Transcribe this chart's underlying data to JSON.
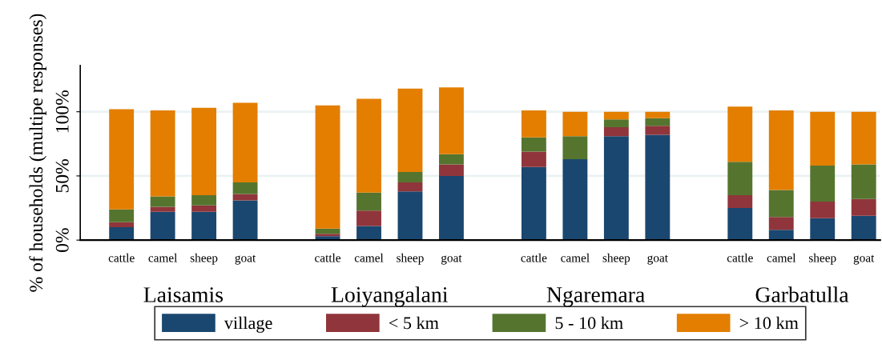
{
  "chart_data": {
    "type": "bar",
    "stacked": true,
    "ylabel": "% of households (multipe responses)",
    "categories": [
      "cattle",
      "camel",
      "sheep",
      "goat",
      null,
      "cattle",
      "camel",
      "sheep",
      "goat",
      null,
      "cattle",
      "camel",
      "sheep",
      "goat",
      null,
      "cattle",
      "camel",
      "sheep",
      "goat"
    ],
    "series": [
      {
        "name": "village",
        "color": "#1a476f",
        "values": [
          10,
          22,
          22,
          31,
          null,
          3,
          11,
          38,
          50,
          null,
          57,
          63,
          81,
          82,
          null,
          25,
          8,
          17,
          19
        ]
      },
      {
        "name": "< 5 km",
        "color": "#90353b",
        "values": [
          4,
          4,
          5,
          5,
          null,
          2,
          12,
          7,
          9,
          null,
          12,
          0,
          7,
          7,
          null,
          10,
          10,
          13,
          13
        ]
      },
      {
        "name": "5 - 10 km",
        "color": "#55752f",
        "values": [
          10,
          8,
          8,
          9,
          null,
          4,
          14,
          8,
          8,
          null,
          11,
          18,
          6,
          6,
          null,
          26,
          21,
          28,
          27
        ]
      },
      {
        "name": "> 10 km",
        "color": "#e37e00",
        "values": [
          78,
          67,
          68,
          62,
          null,
          96,
          73,
          65,
          52,
          null,
          21,
          19,
          6,
          5,
          null,
          43,
          62,
          42,
          41
        ]
      }
    ],
    "annotations": [
      "Laisamis",
      "Loiyangalani",
      "Ngaremara",
      "Garbatulla"
    ],
    "ylim": [
      0,
      136
    ],
    "yticks": [
      {
        "value": 0,
        "label": "0%"
      },
      {
        "value": 50,
        "label": "50%"
      },
      {
        "value": 100,
        "label": "100%"
      }
    ],
    "grid": "y",
    "legend": "bottom"
  }
}
